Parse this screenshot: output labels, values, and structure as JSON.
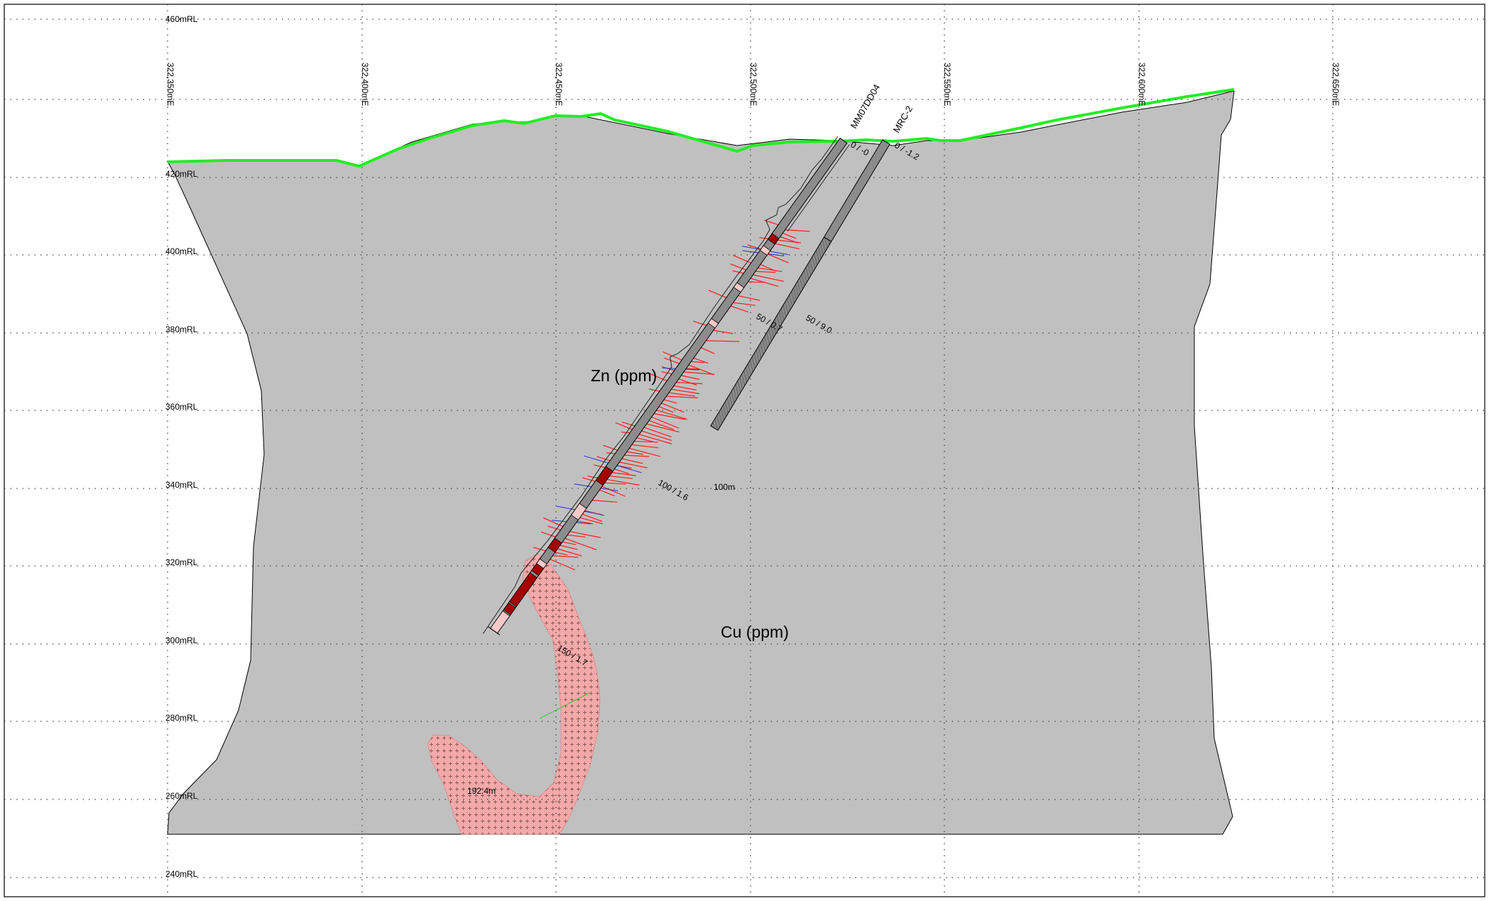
{
  "grid": {
    "rl_labels": [
      "460mRL",
      "420mRL",
      "400mRL",
      "380mRL",
      "360mRL",
      "340mRL",
      "320mRL",
      "300mRL",
      "280mRL",
      "260mRL",
      "240mRL"
    ],
    "easting_labels": [
      "322,350mE",
      "322,400mE",
      "322,450mE",
      "322,500mE",
      "322,550mE",
      "322,600mE",
      "322,650mE"
    ]
  },
  "holes": {
    "h1": {
      "name": "MM07DD04",
      "collar": "0 / -0",
      "depth": "192.4m"
    },
    "h2": {
      "name": "MRC-2",
      "collar": "0 / -1.2",
      "depth": "100m"
    }
  },
  "annotations": {
    "h1_50": "50 / 0.7",
    "h1_100": "100 / 1.6",
    "h1_150": "150 / 1.7",
    "h2_50": "50 / 9.0"
  },
  "legend": {
    "zn": "Zn (ppm)",
    "cu": "Cu (ppm)"
  },
  "colors": {
    "topography": "#22ee22",
    "section_fill": "#c0c0c0",
    "zone_fill": "#f4a9a9",
    "grade_high": "#a50000",
    "grade_low": "#f9c9c9",
    "zn_ticks": "#ff1a1a",
    "cu_ticks": "#2233cc"
  }
}
